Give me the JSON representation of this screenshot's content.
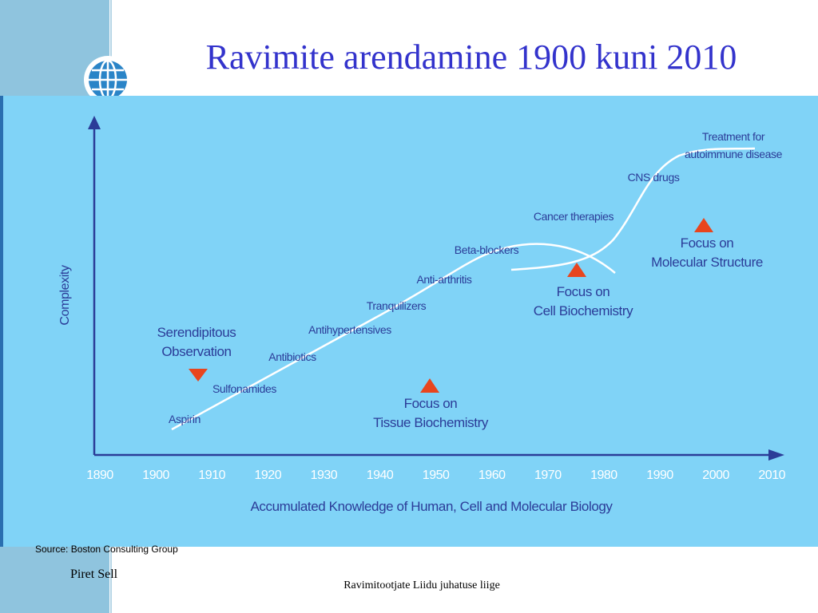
{
  "title": "Ravimite arendamine 1900 kuni 2010",
  "diagram": {
    "y_axis_label": "Complexity",
    "x_axis_label": "Accumulated Knowledge of Human, Cell and Molecular Biology",
    "years": [
      "1890",
      "1900",
      "1910",
      "1920",
      "1930",
      "1940",
      "1950",
      "1960",
      "1970",
      "1980",
      "1990",
      "2000",
      "2010"
    ],
    "milestones": [
      {
        "lines": [
          "Aspirin"
        ]
      },
      {
        "lines": [
          "Sulfonamides"
        ]
      },
      {
        "lines": [
          "Antibiotics"
        ]
      },
      {
        "lines": [
          "Antihypertensives"
        ]
      },
      {
        "lines": [
          "Tranquilizers"
        ]
      },
      {
        "lines": [
          "Anti-arthritis"
        ]
      },
      {
        "lines": [
          "Beta-blockers"
        ]
      },
      {
        "lines": [
          "Cancer therapies"
        ]
      },
      {
        "lines": [
          "CNS drugs"
        ]
      },
      {
        "lines": [
          "Treatment for",
          "autoimmune disease"
        ]
      }
    ],
    "focus_areas": [
      {
        "lines": [
          "Serendipitous",
          "Observation"
        ]
      },
      {
        "lines": [
          "Focus on",
          "Tissue Biochemistry"
        ]
      },
      {
        "lines": [
          "Focus on",
          "Cell Biochemistry"
        ]
      },
      {
        "lines": [
          "Focus on",
          "Molecular Structure"
        ]
      }
    ]
  },
  "footer": {
    "source": "Source: Boston Consulting Group",
    "author": "Piret Sell",
    "role": "Ravimitootjate Liidu juhatuse liige"
  }
}
